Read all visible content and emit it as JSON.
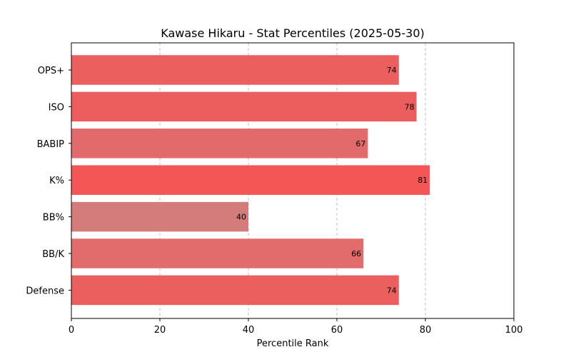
{
  "chart_data": {
    "type": "bar",
    "orientation": "horizontal",
    "title": "Kawase Hikaru - Stat Percentiles (2025-05-30)",
    "xlabel": "Percentile Rank",
    "ylabel": "",
    "xlim": [
      0,
      100
    ],
    "xticks": [
      0,
      20,
      40,
      60,
      80,
      100
    ],
    "grid": "vertical-dashed",
    "categories": [
      "OPS+",
      "ISO",
      "BABIP",
      "K%",
      "BB%",
      "BB/K",
      "Defense"
    ],
    "values": [
      74,
      78,
      67,
      81,
      40,
      66,
      74
    ],
    "colors": [
      "#ec5f5f",
      "#ec5e5e",
      "#e26a6a",
      "#f45656",
      "#d47c7c",
      "#e26b6b",
      "#ec5f5f"
    ]
  }
}
